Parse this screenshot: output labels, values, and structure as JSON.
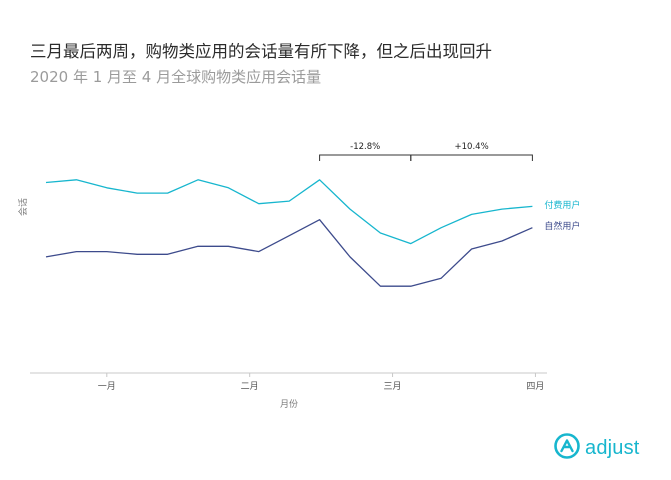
{
  "title": "三月最后两周，购物类应用的会话量有所下降，但之后出现回升",
  "subtitle": "2020 年 1 月至 4 月全球购物类应用会话量",
  "brand": {
    "name": "adjust",
    "icon": "adjust-logo-icon",
    "color": "#17b6ce"
  },
  "chart_data": {
    "type": "line",
    "title": "三月最后两周，购物类应用的会话量有所下降，但之后出现回升",
    "subtitle": "2020 年 1 月至 4 月全球购物类应用会话量",
    "xlabel": "月份",
    "ylabel": "会话",
    "x_ticks": [
      "一月",
      "二月",
      "三月",
      "四月"
    ],
    "x_tick_positions": [
      2,
      6.7,
      11.4,
      16.1
    ],
    "x": [
      0,
      1,
      2,
      3,
      4,
      5,
      6,
      7,
      8,
      9,
      10,
      11,
      12,
      13,
      14,
      15,
      16
    ],
    "y_axis_labels": false,
    "ylim": [
      0,
      100
    ],
    "grid": false,
    "legend": "inline labels at right end of each line",
    "series": [
      {
        "name": "付费用户",
        "color": "#17b6ce",
        "values": [
          69,
          70,
          67,
          65,
          65,
          70,
          67,
          61,
          62,
          70,
          59,
          50,
          46,
          52,
          57,
          59,
          60
        ]
      },
      {
        "name": "自然用户",
        "color": "#3d4b8c",
        "values": [
          41,
          43,
          43,
          42,
          42,
          45,
          45,
          43,
          49,
          55,
          41,
          30,
          30,
          33,
          44,
          47,
          52
        ]
      }
    ],
    "annotations": [
      {
        "from_x": 9,
        "to_x": 12,
        "text": "-12.8%"
      },
      {
        "from_x": 12,
        "to_x": 16,
        "text": "+10.4%"
      }
    ]
  }
}
